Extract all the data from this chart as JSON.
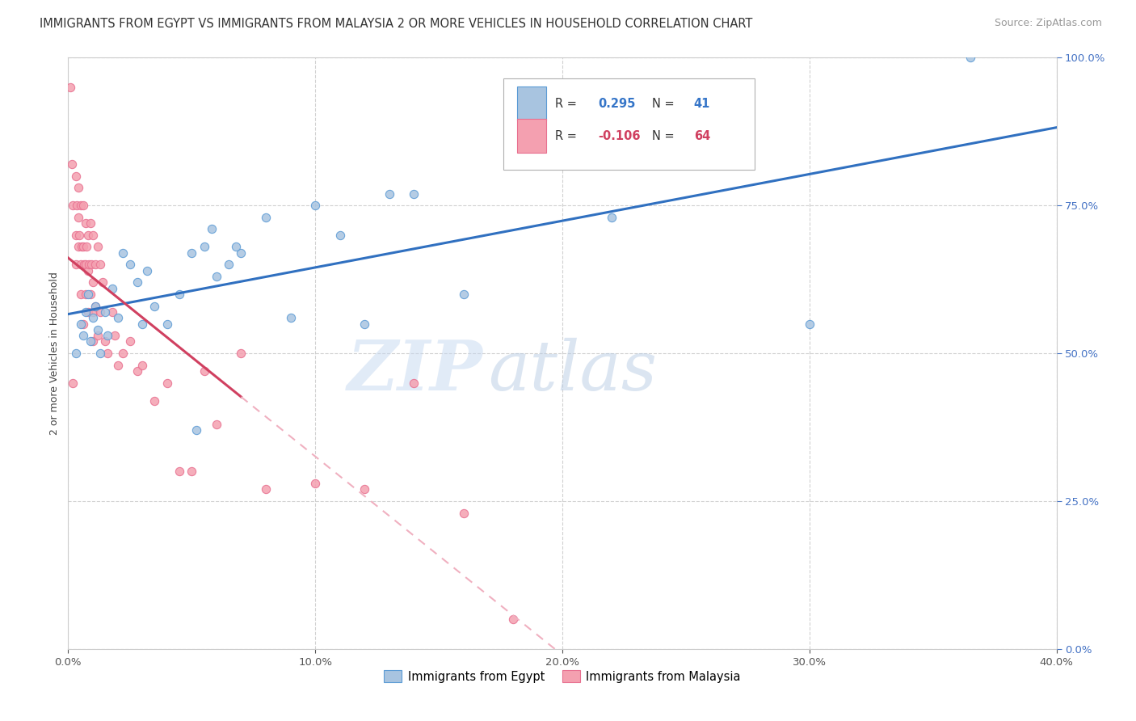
{
  "title": "IMMIGRANTS FROM EGYPT VS IMMIGRANTS FROM MALAYSIA 2 OR MORE VEHICLES IN HOUSEHOLD CORRELATION CHART",
  "source": "Source: ZipAtlas.com",
  "ylabel": "2 or more Vehicles in Household",
  "x_min": 0.0,
  "x_max": 40.0,
  "y_min": 0.0,
  "y_max": 100.0,
  "x_ticks": [
    0.0,
    10.0,
    20.0,
    30.0,
    40.0
  ],
  "y_ticks": [
    0.0,
    25.0,
    50.0,
    75.0,
    100.0
  ],
  "x_tick_labels": [
    "0.0%",
    "10.0%",
    "20.0%",
    "30.0%",
    "40.0%"
  ],
  "y_tick_labels": [
    "0.0%",
    "25.0%",
    "50.0%",
    "75.0%",
    "100.0%"
  ],
  "egypt_color": "#a8c4e0",
  "malaysia_color": "#f4a0b0",
  "egypt_edge_color": "#5b9bd5",
  "malaysia_edge_color": "#e87090",
  "trend_egypt_color": "#3070c0",
  "trend_malaysia_color": "#d04060",
  "trend_malaysia_dash_color": "#f0b0c0",
  "legend_egypt_R": "0.295",
  "legend_egypt_N": "41",
  "legend_malaysia_R": "-0.106",
  "legend_malaysia_N": "64",
  "legend_label_egypt": "Immigrants from Egypt",
  "legend_label_malaysia": "Immigrants from Malaysia",
  "egypt_x": [
    0.3,
    0.5,
    0.6,
    0.7,
    0.8,
    0.9,
    1.0,
    1.1,
    1.2,
    1.3,
    1.5,
    1.6,
    1.8,
    2.0,
    2.2,
    2.5,
    2.8,
    3.0,
    3.2,
    3.5,
    4.0,
    4.5,
    5.0,
    5.5,
    6.0,
    6.5,
    7.0,
    8.0,
    9.0,
    10.0,
    11.0,
    12.0,
    13.0,
    14.0,
    16.0,
    22.0,
    30.0,
    36.5,
    5.2,
    5.8,
    6.8
  ],
  "egypt_y": [
    50,
    55,
    53,
    57,
    60,
    52,
    56,
    58,
    54,
    50,
    57,
    53,
    61,
    56,
    67,
    65,
    62,
    55,
    64,
    58,
    55,
    60,
    67,
    68,
    63,
    65,
    67,
    73,
    56,
    75,
    70,
    55,
    77,
    77,
    60,
    73,
    55,
    100,
    37,
    71,
    68
  ],
  "malaysia_x": [
    0.1,
    0.15,
    0.2,
    0.2,
    0.3,
    0.3,
    0.3,
    0.35,
    0.4,
    0.4,
    0.4,
    0.45,
    0.5,
    0.5,
    0.5,
    0.55,
    0.6,
    0.6,
    0.6,
    0.65,
    0.7,
    0.7,
    0.7,
    0.75,
    0.8,
    0.8,
    0.8,
    0.85,
    0.9,
    0.9,
    0.95,
    1.0,
    1.0,
    1.0,
    1.0,
    1.1,
    1.1,
    1.2,
    1.2,
    1.3,
    1.3,
    1.4,
    1.5,
    1.6,
    1.8,
    1.9,
    2.0,
    2.2,
    2.5,
    2.8,
    3.0,
    3.5,
    4.0,
    4.5,
    5.0,
    5.5,
    6.0,
    7.0,
    8.0,
    10.0,
    12.0,
    14.0,
    16.0,
    18.0
  ],
  "malaysia_y": [
    95,
    82,
    75,
    45,
    80,
    70,
    65,
    75,
    78,
    73,
    68,
    70,
    75,
    65,
    60,
    68,
    75,
    68,
    55,
    65,
    72,
    65,
    60,
    68,
    70,
    64,
    57,
    65,
    72,
    60,
    65,
    70,
    62,
    57,
    52,
    65,
    58,
    68,
    53,
    65,
    57,
    62,
    52,
    50,
    57,
    53,
    48,
    50,
    52,
    47,
    48,
    42,
    45,
    30,
    30,
    47,
    38,
    50,
    27,
    28,
    27,
    45,
    23,
    5
  ],
  "malaysia_trend_end_x": 7.0,
  "watermark_zip": "ZIP",
  "watermark_atlas": "atlas",
  "background_color": "#ffffff",
  "grid_color": "#cccccc",
  "grid_linestyle": "--",
  "marker_size": 55,
  "title_fontsize": 10.5,
  "axis_label_fontsize": 9,
  "tick_fontsize": 9.5,
  "source_fontsize": 9,
  "y_tick_color": "#4472c4",
  "x_tick_color": "#555555"
}
